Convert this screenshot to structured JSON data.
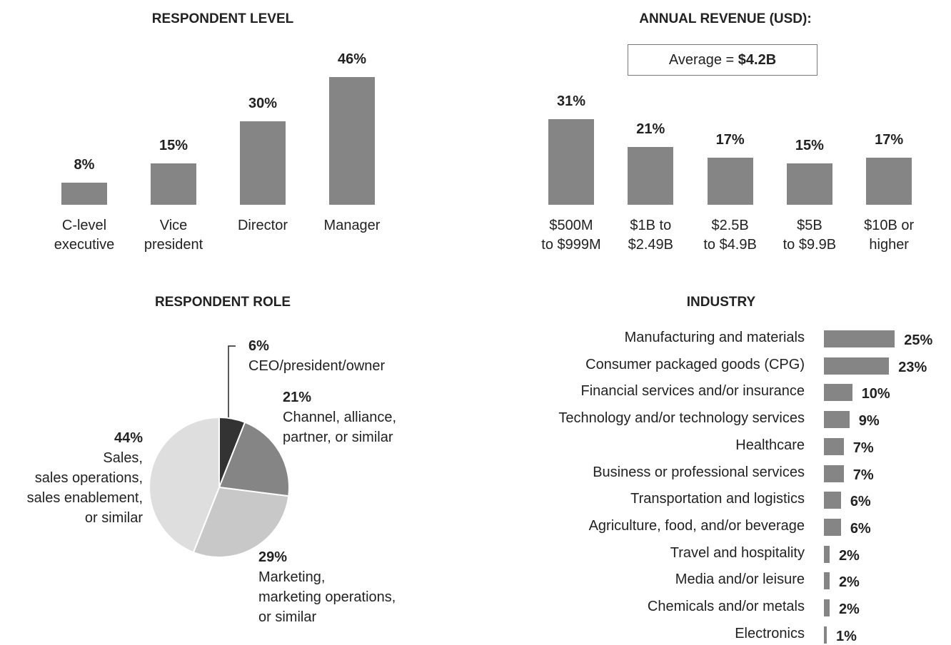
{
  "chart_data": [
    {
      "type": "bar",
      "title": "RESPONDENT LEVEL",
      "categories": [
        "C-level\nexecutive",
        "Vice\npresident",
        "Director",
        "Manager"
      ],
      "values": [
        8,
        15,
        30,
        46
      ],
      "value_labels": [
        "8%",
        "15%",
        "30%",
        "46%"
      ],
      "color": "#858585"
    },
    {
      "type": "bar",
      "title": "ANNUAL REVENUE (USD):",
      "annotation": "Average =",
      "annotation_value": "$4.2B",
      "categories": [
        "$500M\nto $999M",
        "$1B to\n$2.49B",
        "$2.5B\nto $4.9B",
        "$5B\nto $9.9B",
        "$10B or\nhigher"
      ],
      "values": [
        31,
        21,
        17,
        15,
        17
      ],
      "value_labels": [
        "31%",
        "21%",
        "17%",
        "15%",
        "17%"
      ],
      "color": "#858585"
    },
    {
      "type": "pie",
      "title": "RESPONDENT ROLE",
      "categories": [
        "CEO/president/owner",
        "Channel, alliance,\npartner, or similar",
        "Marketing,\nmarketing operations,\nor similar",
        "Sales,\nsales operations,\nsales enablement,\nor similar"
      ],
      "values": [
        6,
        21,
        29,
        44
      ],
      "value_labels": [
        "6%",
        "21%",
        "29%",
        "44%"
      ],
      "colors": [
        "#333333",
        "#858585",
        "#c8c8c8",
        "#dedede"
      ]
    },
    {
      "type": "hbar",
      "title": "INDUSTRY",
      "categories": [
        "Manufacturing and materials",
        "Consumer packaged goods (CPG)",
        "Financial services and/or insurance",
        "Technology and/or technology services",
        "Healthcare",
        "Business or professional services",
        "Transportation and logistics",
        "Agriculture, food, and/or beverage",
        "Travel and hospitality",
        "Media and/or leisure",
        "Chemicals and/or metals",
        "Electronics"
      ],
      "values": [
        25,
        23,
        10,
        9,
        7,
        7,
        6,
        6,
        2,
        2,
        2,
        1
      ],
      "value_labels": [
        "25%",
        "23%",
        "10%",
        "9%",
        "7%",
        "7%",
        "6%",
        "6%",
        "2%",
        "2%",
        "2%",
        "1%"
      ],
      "color": "#858585"
    }
  ]
}
